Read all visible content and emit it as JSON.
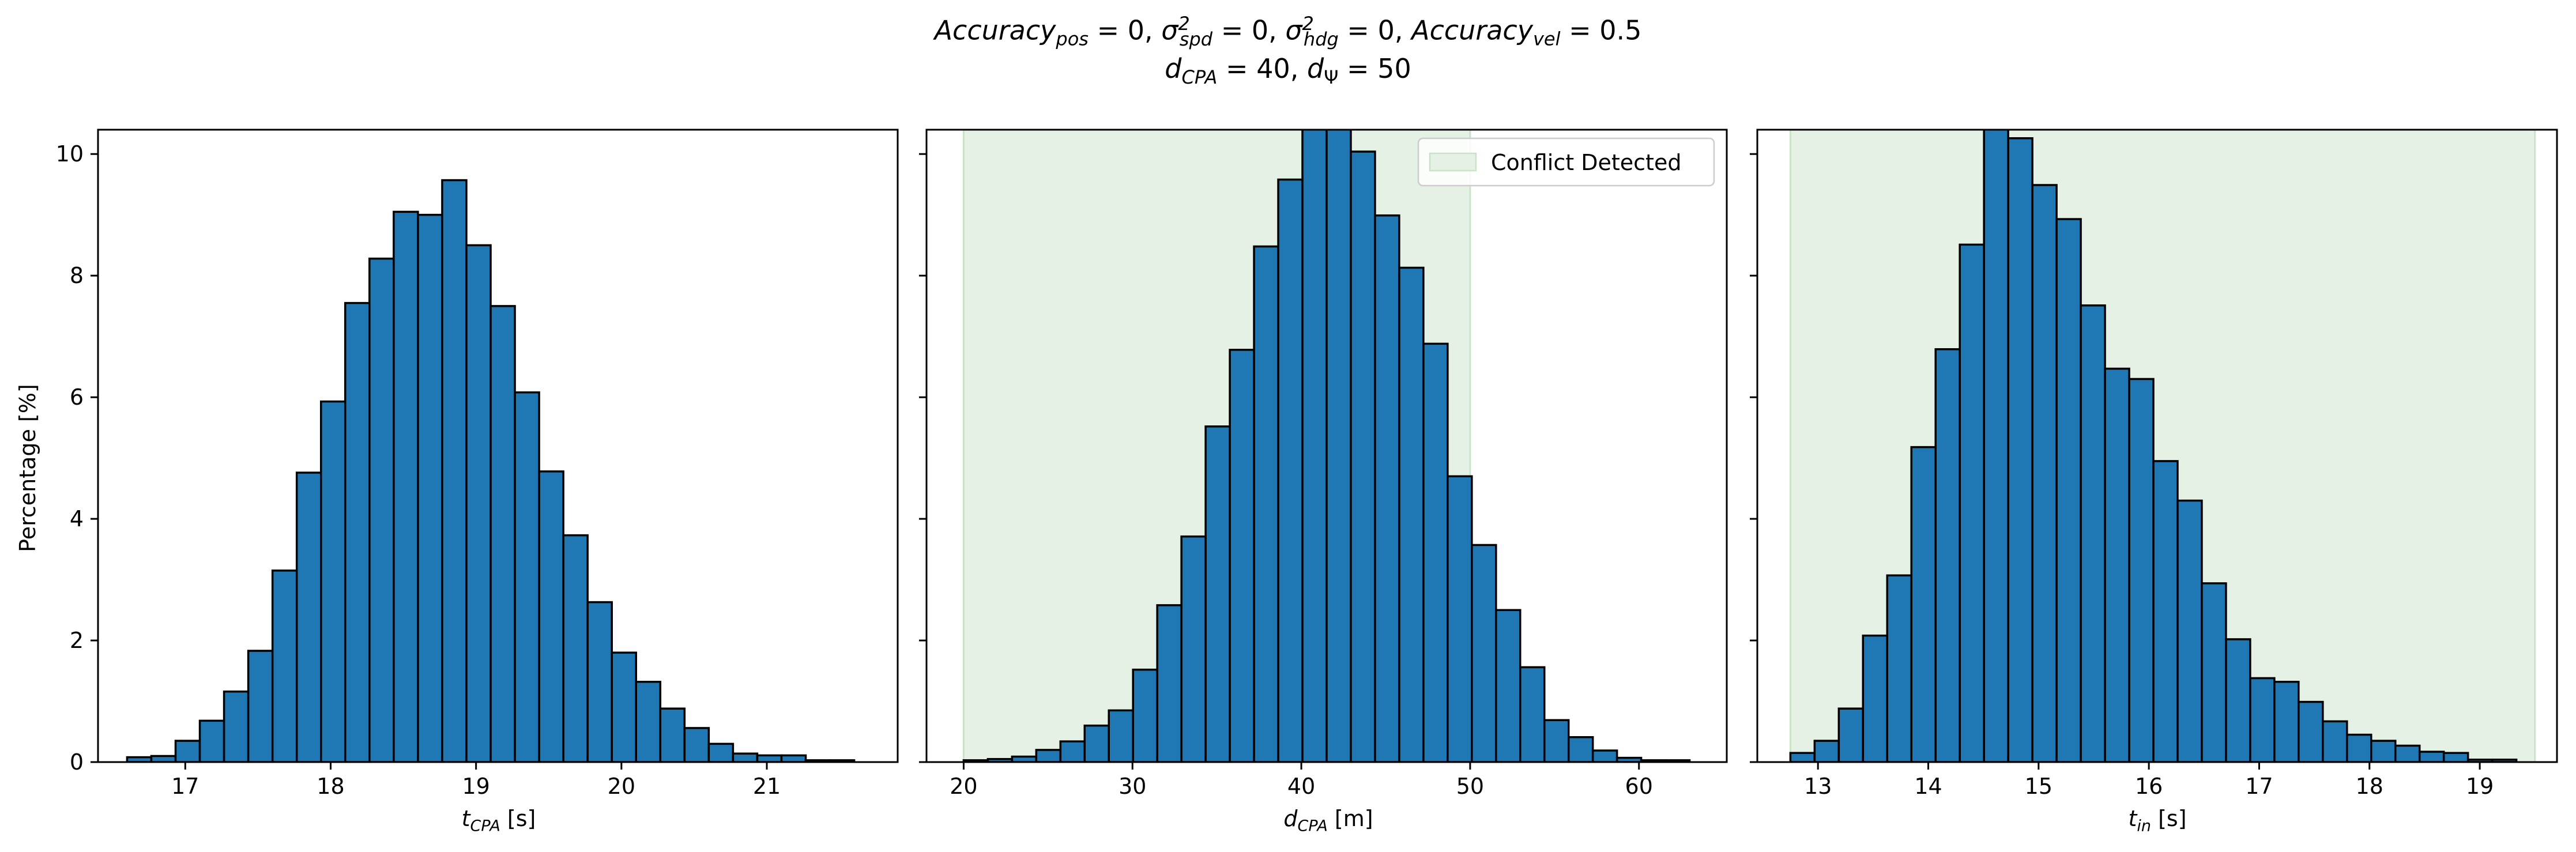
{
  "title": {
    "line1": {
      "acc_pos_sym": "Accuracy",
      "acc_pos_sub": "pos",
      "acc_pos_val": " = 0, ",
      "spd_sym": "σ",
      "spd_sup": "2",
      "spd_sub": "spd",
      "spd_val": " = 0, ",
      "hdg_sym": "σ",
      "hdg_sup": "2",
      "hdg_sub": "hdg",
      "hdg_val": " = 0, ",
      "acc_vel_sym": "Accuracy",
      "acc_vel_sub": "vel",
      "acc_vel_val": " = 0.5"
    },
    "line2": {
      "dcpa_sym": "d",
      "dcpa_sub": "CPA",
      "dcpa_val": " = 40, ",
      "dpsi_sym": "d",
      "dpsi_sub": "Ψ",
      "dpsi_val": " = 50"
    }
  },
  "ylabel": "Percentage [%]",
  "colors": {
    "bar_fill": "#1f77b4",
    "bar_edge": "#000000",
    "shade": "#e5f1e5",
    "shade_edge": "#c9e3c9"
  },
  "legend": {
    "label": "Conflict Detected"
  },
  "chart_data": [
    {
      "type": "bar",
      "xlabel_sym": "t",
      "xlabel_sub": "CPA",
      "xlabel_unit": " [s]",
      "xlim": [
        16.4,
        21.9
      ],
      "ylim": [
        0,
        10.4
      ],
      "xticks": [
        17,
        18,
        19,
        20,
        21
      ],
      "yticks": [
        0,
        2,
        4,
        6,
        8,
        10
      ],
      "bin_start": 16.6,
      "bin_width": 0.1667,
      "values": [
        0.08,
        0.1,
        0.35,
        0.68,
        1.16,
        1.83,
        3.15,
        4.76,
        5.93,
        7.55,
        8.28,
        9.05,
        9.0,
        9.57,
        8.5,
        7.5,
        6.08,
        4.78,
        3.73,
        2.63,
        1.8,
        1.32,
        0.88,
        0.56,
        0.3,
        0.14,
        0.11,
        0.11,
        0.03,
        0.03
      ]
    },
    {
      "type": "bar",
      "xlabel_sym": "d",
      "xlabel_sub": "CPA",
      "xlabel_unit": " [m]",
      "xlim": [
        17.8,
        65.2
      ],
      "ylim": [
        0,
        10.4
      ],
      "xticks": [
        20,
        30,
        40,
        50,
        60
      ],
      "yticks": [
        0,
        2,
        4,
        6,
        8,
        10
      ],
      "shade_range": [
        20,
        50
      ],
      "legend": true,
      "bin_start": 20,
      "bin_width": 1.4333,
      "values": [
        0.03,
        0.05,
        0.09,
        0.2,
        0.34,
        0.6,
        0.85,
        1.52,
        2.58,
        3.71,
        5.52,
        6.78,
        8.48,
        9.58,
        10.6,
        10.8,
        10.04,
        8.99,
        8.13,
        6.88,
        4.7,
        3.57,
        2.5,
        1.56,
        0.69,
        0.41,
        0.19,
        0.07,
        0.03,
        0.03
      ]
    },
    {
      "type": "bar",
      "xlabel_sym": "t",
      "xlabel_sub": "in",
      "xlabel_unit": " [s]",
      "xlim": [
        12.45,
        19.7
      ],
      "ylim": [
        0,
        10.4
      ],
      "xticks": [
        13,
        14,
        15,
        16,
        17,
        18,
        19
      ],
      "yticks": [
        0,
        2,
        4,
        6,
        8,
        10
      ],
      "shade_range": [
        12.75,
        19.5
      ],
      "bin_start": 12.75,
      "bin_width": 0.2194,
      "values": [
        0.15,
        0.35,
        0.88,
        2.08,
        3.07,
        5.18,
        6.79,
        8.51,
        10.7,
        10.26,
        9.49,
        8.93,
        7.51,
        6.47,
        6.3,
        4.95,
        4.3,
        2.94,
        2.02,
        1.38,
        1.32,
        0.99,
        0.67,
        0.45,
        0.35,
        0.27,
        0.17,
        0.15,
        0.04,
        0.04
      ]
    }
  ]
}
